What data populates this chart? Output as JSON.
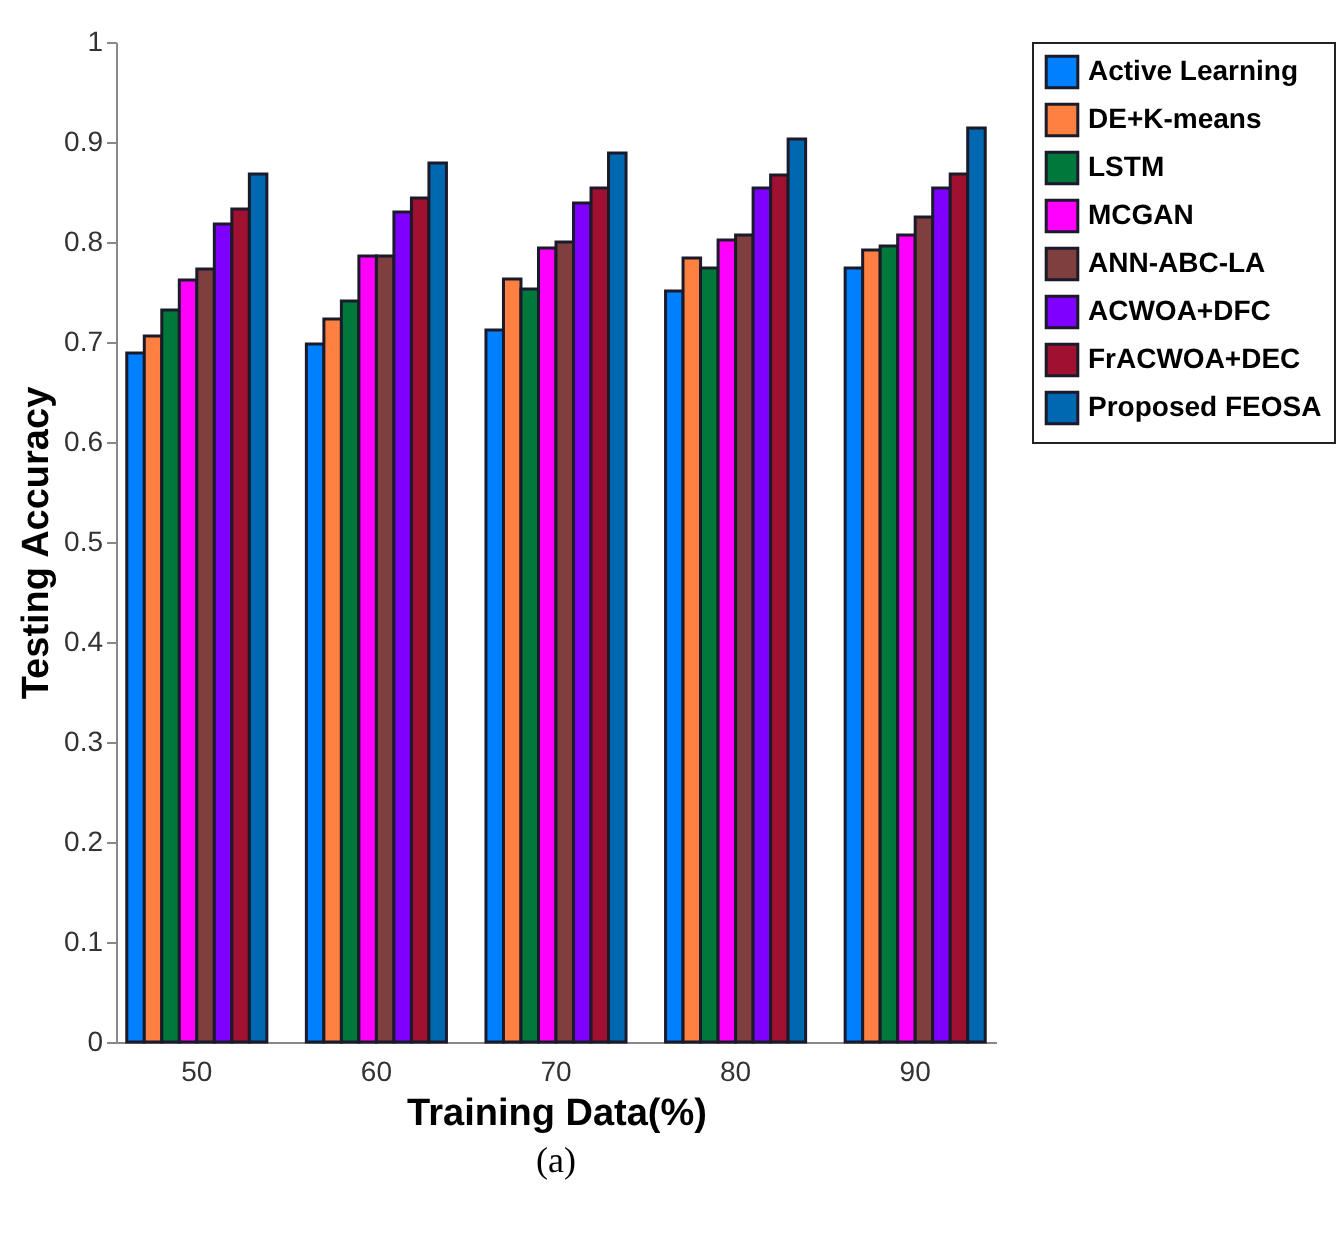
{
  "chart_data": {
    "type": "bar",
    "xlabel": "Training Data(%)",
    "ylabel": "Testing Accuracy",
    "categories": [
      "50",
      "60",
      "70",
      "80",
      "90"
    ],
    "series": [
      {
        "name": "Active Learning",
        "color": "#0080ff",
        "values": [
          0.689,
          0.698,
          0.712,
          0.751,
          0.774
        ]
      },
      {
        "name": "DE+K-means",
        "color": "#ff8040",
        "values": [
          0.706,
          0.723,
          0.763,
          0.784,
          0.792
        ]
      },
      {
        "name": "LSTM",
        "color": "#00783c",
        "values": [
          0.732,
          0.741,
          0.753,
          0.774,
          0.796
        ]
      },
      {
        "name": "MCGAN",
        "color": "#ff00ff",
        "values": [
          0.762,
          0.786,
          0.794,
          0.802,
          0.807
        ]
      },
      {
        "name": "ANN-ABC-LA",
        "color": "#7f3f3f",
        "values": [
          0.773,
          0.786,
          0.8,
          0.807,
          0.825
        ]
      },
      {
        "name": "ACWOA+DFC",
        "color": "#8000ff",
        "values": [
          0.818,
          0.83,
          0.839,
          0.854,
          0.854
        ]
      },
      {
        "name": "FrACWOA+DEC",
        "color": "#a01030",
        "values": [
          0.833,
          0.844,
          0.854,
          0.867,
          0.868
        ]
      },
      {
        "name": "Proposed FEOSA",
        "color": "#0068b0",
        "values": [
          0.868,
          0.879,
          0.889,
          0.903,
          0.914
        ]
      }
    ],
    "ylim": [
      0,
      1
    ],
    "yticks": [
      0,
      0.1,
      0.2,
      0.3,
      0.4,
      0.5,
      0.6,
      0.7,
      0.8,
      0.9,
      1
    ],
    "legend": "right",
    "annotations": [
      "(a)"
    ]
  }
}
